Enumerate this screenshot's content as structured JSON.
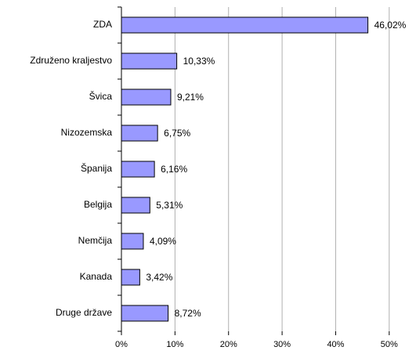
{
  "chart_data": {
    "type": "bar",
    "orientation": "horizontal",
    "categories": [
      "ZDA",
      "Združeno kraljestvo",
      "Švica",
      "Nizozemska",
      "Španija",
      "Belgija",
      "Nemčija",
      "Kanada",
      "Druge države"
    ],
    "values": [
      46.02,
      10.33,
      9.21,
      6.75,
      6.16,
      5.31,
      4.09,
      3.42,
      8.72
    ],
    "value_labels": [
      "46,02%",
      "10,33%",
      "9,21%",
      "6,75%",
      "6,16%",
      "5,31%",
      "4,09%",
      "3,42%",
      "8,72%"
    ],
    "color": "#9999ff",
    "xlim": [
      0,
      55
    ],
    "xticks": [
      {
        "value": 0,
        "label": "0%"
      },
      {
        "value": 10,
        "label": "10%"
      },
      {
        "value": 20,
        "label": "20%"
      },
      {
        "value": 30,
        "label": "30%"
      },
      {
        "value": 40,
        "label": "40%"
      },
      {
        "value": 50,
        "label": "50%"
      }
    ],
    "grid": true
  }
}
